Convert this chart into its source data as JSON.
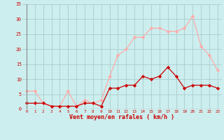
{
  "x": [
    0,
    1,
    2,
    3,
    4,
    5,
    6,
    7,
    8,
    9,
    10,
    11,
    12,
    13,
    14,
    15,
    16,
    17,
    18,
    19,
    20,
    21,
    22,
    23
  ],
  "mean_wind": [
    2,
    2,
    2,
    1,
    1,
    1,
    1,
    2,
    2,
    1,
    7,
    7,
    8,
    8,
    11,
    10,
    11,
    14,
    11,
    7,
    8,
    8,
    8,
    7
  ],
  "gust_wind": [
    6,
    6,
    2,
    1,
    1,
    6,
    1,
    3,
    2,
    3,
    11,
    18,
    20,
    24,
    24,
    27,
    27,
    26,
    26,
    27,
    31,
    21,
    18,
    13
  ],
  "mean_color": "#cc0000",
  "gust_color": "#ffaaaa",
  "bg_color": "#cceeee",
  "grid_color": "#aacccc",
  "xlabel": "Vent moyen/en rafales ( km/h )",
  "xlabel_color": "#cc0000",
  "tick_color": "#cc0000",
  "axis_line_color": "#888888",
  "ylim": [
    0,
    35
  ],
  "yticks": [
    0,
    5,
    10,
    15,
    20,
    25,
    30,
    35
  ],
  "xlim": [
    -0.5,
    23.5
  ]
}
